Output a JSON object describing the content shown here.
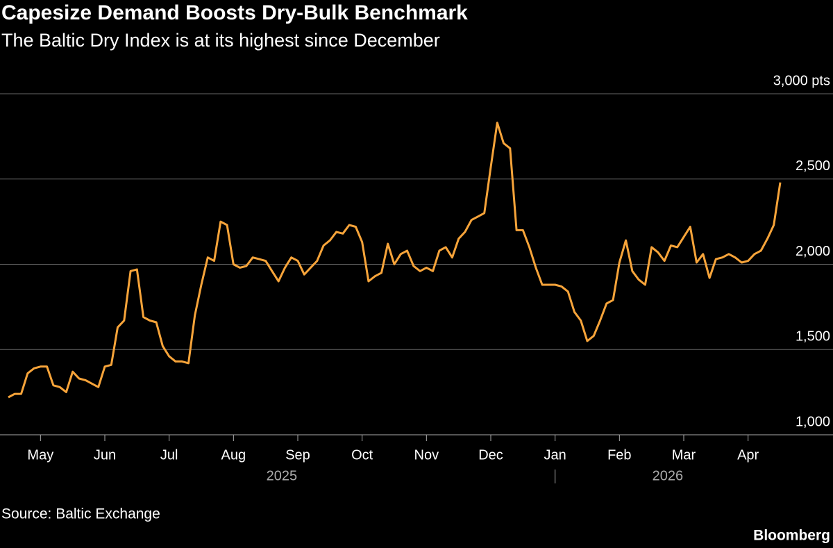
{
  "chart_data": {
    "type": "line",
    "title": "Capesize Demand Boosts Dry-Bulk Benchmark",
    "subtitle": "The Baltic Dry Index is at its highest since December",
    "source": "Source: Baltic Exchange",
    "brand": "Bloomberg",
    "years": [
      "2025",
      "2026"
    ],
    "categories": [
      null,
      null,
      null,
      null,
      null,
      "May",
      null,
      null,
      null,
      null,
      null,
      null,
      null,
      null,
      null,
      "Jun",
      null,
      null,
      null,
      null,
      null,
      null,
      null,
      null,
      null,
      "Jul",
      null,
      null,
      null,
      null,
      null,
      null,
      null,
      null,
      null,
      "Aug",
      null,
      null,
      null,
      null,
      null,
      null,
      null,
      null,
      null,
      "Sep",
      null,
      null,
      null,
      null,
      null,
      null,
      null,
      null,
      null,
      "Oct",
      null,
      null,
      null,
      null,
      null,
      null,
      null,
      null,
      null,
      "Nov",
      null,
      null,
      null,
      null,
      null,
      null,
      null,
      null,
      null,
      "Dec",
      null,
      null,
      null,
      null,
      null,
      null,
      null,
      null,
      null,
      "Jan",
      null,
      null,
      null,
      null,
      null,
      null,
      null,
      null,
      null,
      "Feb",
      null,
      null,
      null,
      null,
      null,
      null,
      null,
      null,
      null,
      "Mar",
      null,
      null,
      null,
      null,
      null,
      null,
      null,
      null,
      null,
      "Apr",
      null,
      null,
      null,
      null,
      null
    ],
    "series": [
      {
        "name": "Baltic Dry Index",
        "color": "#f7a43a",
        "values": [
          1220,
          1240,
          1240,
          1360,
          1390,
          1400,
          1400,
          1290,
          1280,
          1250,
          1370,
          1330,
          1320,
          1300,
          1280,
          1400,
          1410,
          1630,
          1670,
          1960,
          1970,
          1690,
          1670,
          1660,
          1520,
          1460,
          1430,
          1430,
          1420,
          1700,
          1880,
          2040,
          2020,
          2250,
          2230,
          2000,
          1980,
          1990,
          2040,
          2030,
          2020,
          1960,
          1900,
          1980,
          2040,
          2020,
          1940,
          1980,
          2020,
          2110,
          2140,
          2190,
          2180,
          2230,
          2220,
          2130,
          1900,
          1930,
          1950,
          2120,
          2000,
          2060,
          2080,
          1990,
          1960,
          1980,
          1960,
          2080,
          2100,
          2040,
          2150,
          2190,
          2260,
          2280,
          2300,
          2570,
          2830,
          2710,
          2680,
          2200,
          2200,
          2100,
          1980,
          1880,
          1880,
          1880,
          1870,
          1840,
          1720,
          1670,
          1550,
          1580,
          1670,
          1770,
          1790,
          2010,
          2140,
          1960,
          1910,
          1880,
          2100,
          2070,
          2020,
          2110,
          2100,
          2160,
          2220,
          2010,
          2060,
          1920,
          2030,
          2040,
          2060,
          2040,
          2010,
          2020,
          2060,
          2080,
          2150,
          2230,
          2480
        ]
      }
    ],
    "ylim": [
      1000,
      3000
    ],
    "yticks": [
      {
        "value": 1000,
        "label": "1,000"
      },
      {
        "value": 1500,
        "label": "1,500"
      },
      {
        "value": 2000,
        "label": "2,000"
      },
      {
        "value": 2500,
        "label": "2,500"
      },
      {
        "value": 3000,
        "label": "3,000 pts"
      }
    ],
    "grid": true
  }
}
